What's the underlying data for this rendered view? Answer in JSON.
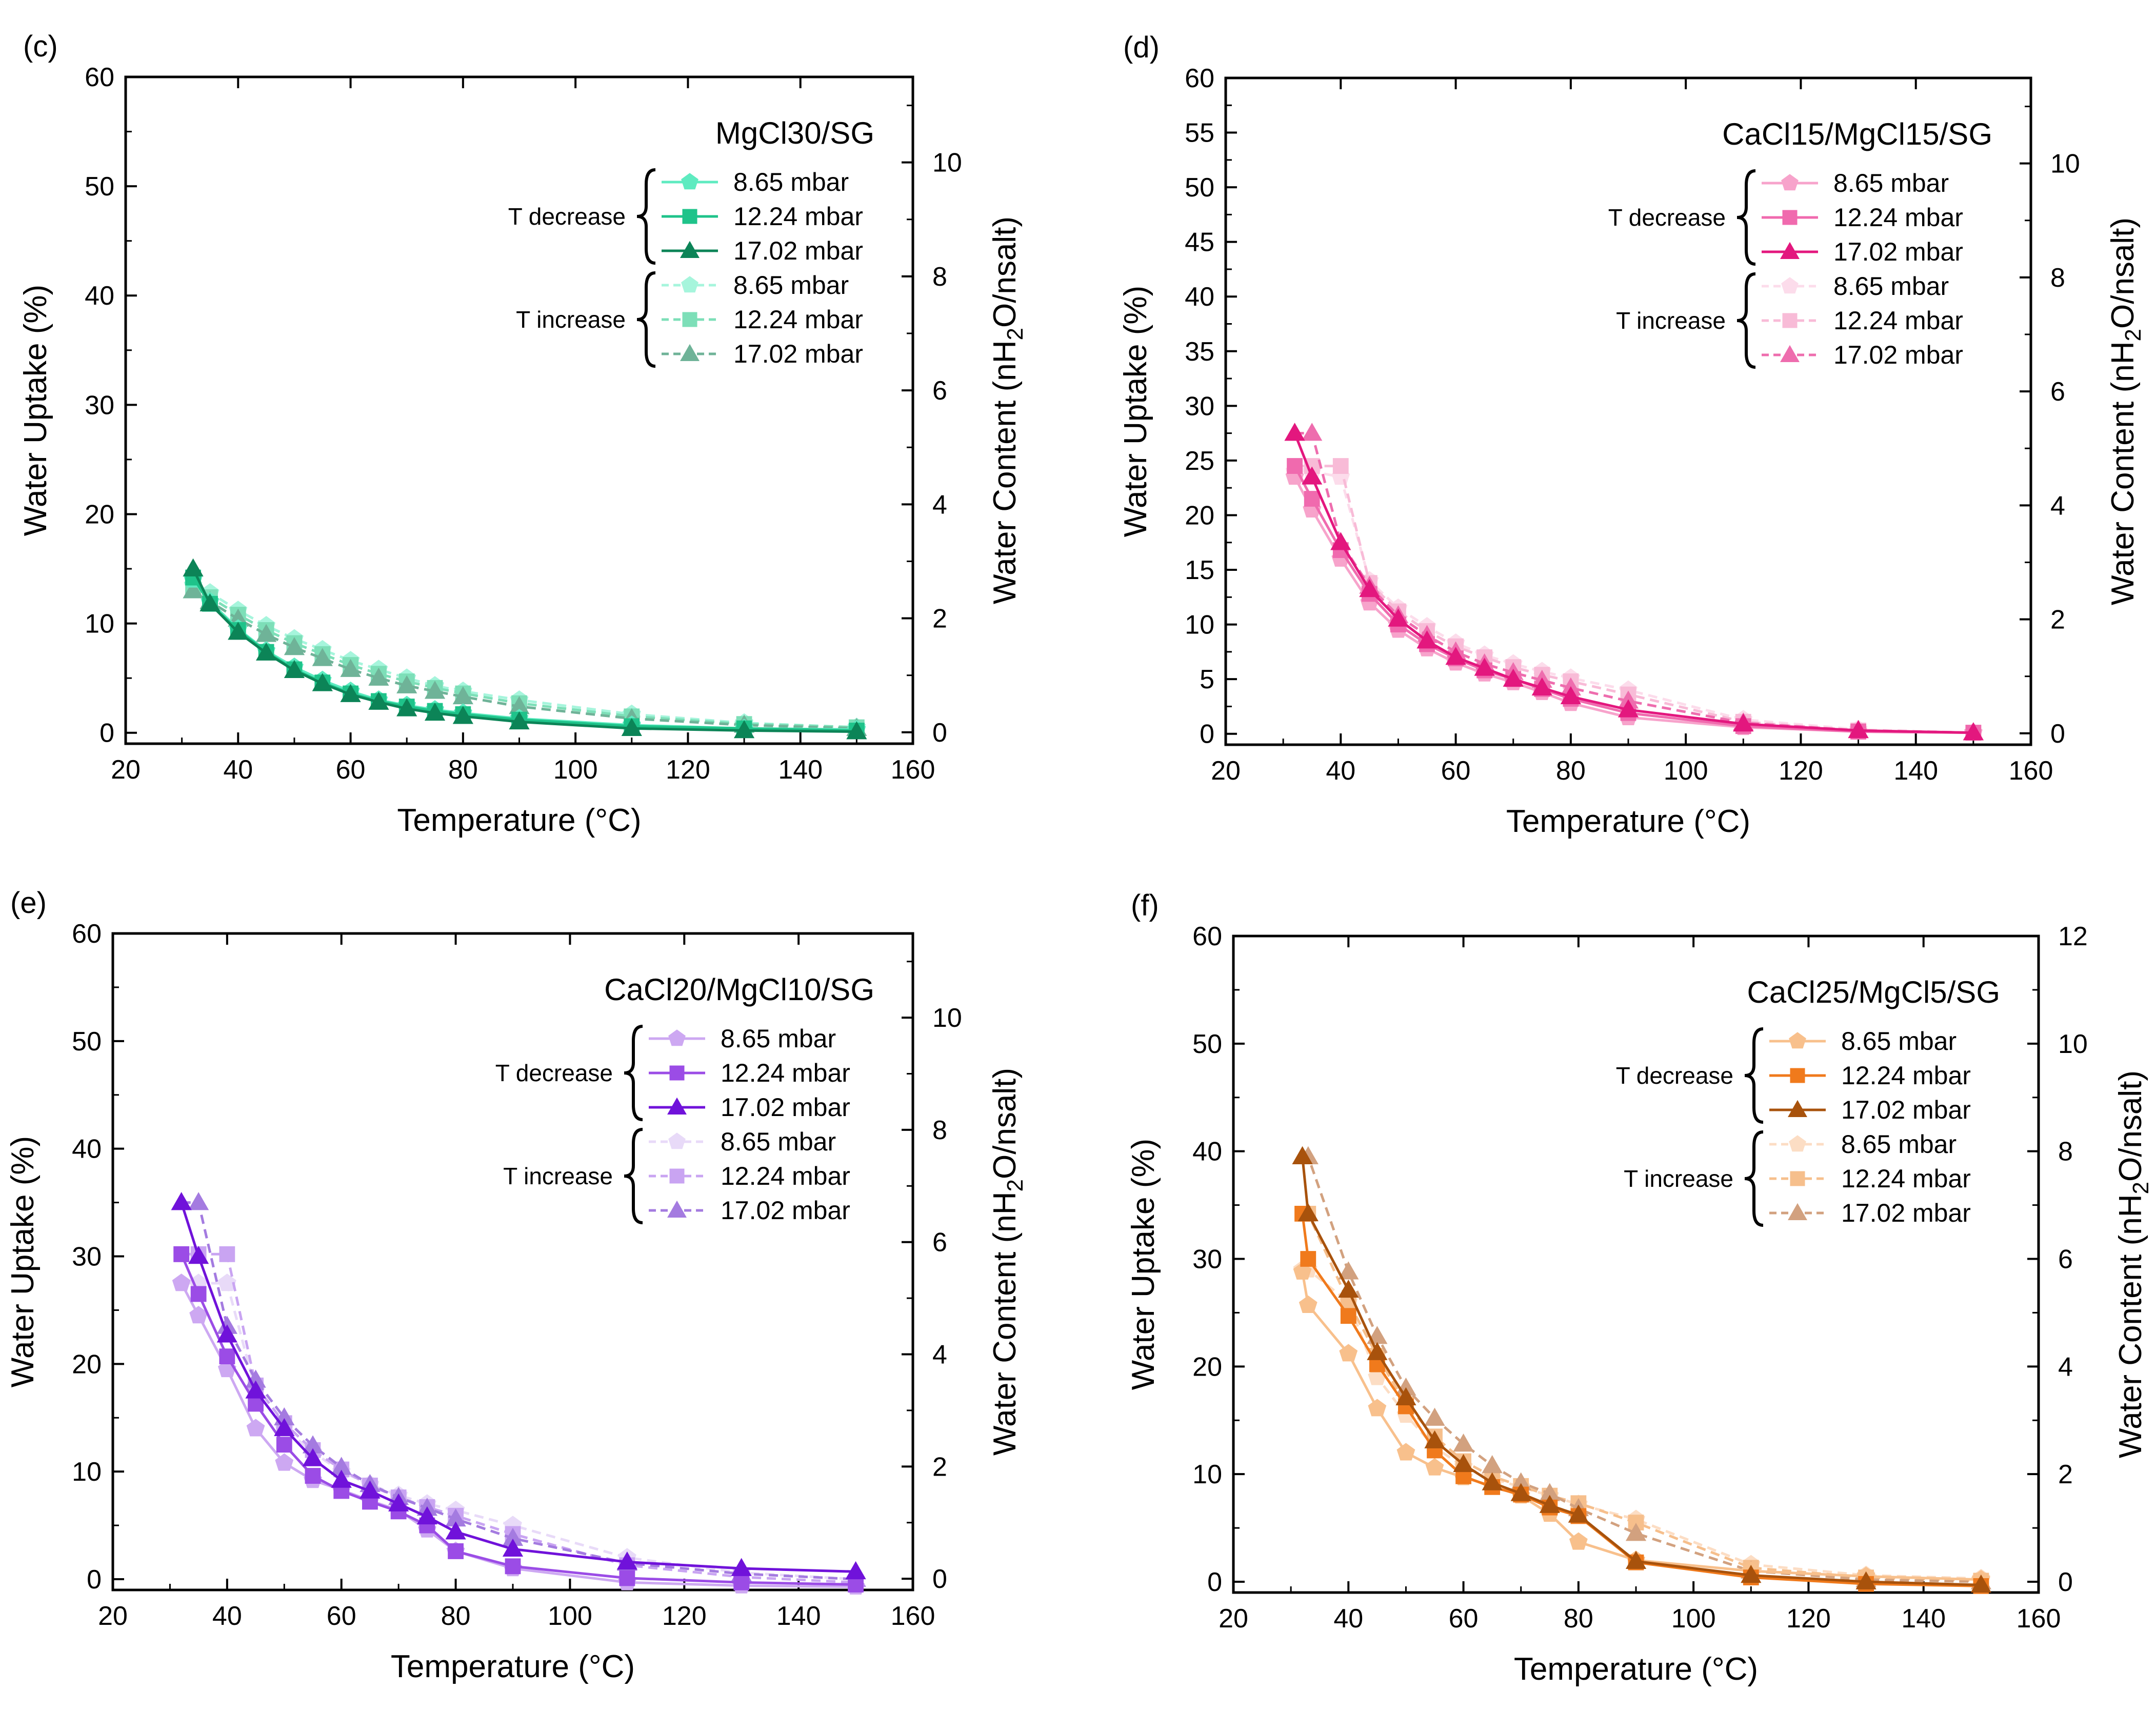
{
  "figure": {
    "legend_group_labels": [
      "T decrease",
      "T increase"
    ],
    "series_labels": [
      "8.65 mbar",
      "12.24 mbar",
      "17.02 mbar"
    ]
  },
  "chart_data": [
    {
      "type": "line",
      "panel_label": "(c)",
      "title": "MgCl30/SG",
      "xlabel": "Temperature (°C)",
      "ylabel": "Water Uptake (%)",
      "y2label": "Water Content (nH2O/nsalt)",
      "xlim": [
        20,
        160
      ],
      "xticks": [
        20,
        40,
        60,
        80,
        100,
        120,
        140,
        160
      ],
      "ylim": [
        -1,
        60
      ],
      "yticks": [
        0,
        10,
        20,
        30,
        40,
        50,
        60
      ],
      "y2lim": [
        -0.2,
        11.5
      ],
      "y2ticks": [
        0,
        2,
        4,
        6,
        8,
        10
      ],
      "colors": {
        "dec": [
          "#5EEBC0",
          "#1FC38A",
          "#0C8457"
        ],
        "inc": [
          "#A6F5DC",
          "#7DDFB8",
          "#6FB398"
        ]
      },
      "x": [
        32,
        35,
        40,
        45,
        50,
        55,
        60,
        65,
        70,
        75,
        80,
        90,
        110,
        130,
        150
      ],
      "series": [
        {
          "name": "8.65 mbar",
          "group": "T decrease",
          "values": [
            14.0,
            12.0,
            9.5,
            7.5,
            6.0,
            4.8,
            3.8,
            3.0,
            2.5,
            2.1,
            1.8,
            1.3,
            0.7,
            0.4,
            0.3
          ]
        },
        {
          "name": "12.24 mbar",
          "group": "T decrease",
          "values": [
            14.2,
            11.8,
            9.4,
            7.4,
            5.8,
            4.6,
            3.6,
            2.9,
            2.4,
            2.0,
            1.7,
            1.2,
            0.6,
            0.4,
            0.2
          ]
        },
        {
          "name": "17.02 mbar",
          "group": "T decrease",
          "values": [
            15.0,
            11.8,
            9.2,
            7.3,
            5.7,
            4.5,
            3.5,
            2.8,
            2.2,
            1.8,
            1.5,
            1.0,
            0.4,
            0.2,
            0.1
          ]
        },
        {
          "name": "8.65 mbar",
          "group": "T increase",
          "values": [
            13.5,
            12.8,
            11.2,
            9.8,
            8.6,
            7.6,
            6.6,
            5.8,
            5.0,
            4.3,
            3.8,
            3.0,
            1.7,
            0.9,
            0.5
          ]
        },
        {
          "name": "12.24 mbar",
          "group": "T increase",
          "values": [
            13.2,
            12.4,
            10.8,
            9.4,
            8.2,
            7.2,
            6.2,
            5.4,
            4.7,
            4.1,
            3.6,
            2.7,
            1.5,
            0.8,
            0.5
          ]
        },
        {
          "name": "17.02 mbar",
          "group": "T increase",
          "values": [
            13.0,
            12.0,
            10.4,
            9.0,
            7.8,
            6.8,
            5.8,
            5.0,
            4.3,
            3.8,
            3.3,
            2.4,
            1.3,
            0.7,
            0.4
          ]
        }
      ]
    },
    {
      "type": "line",
      "panel_label": "(d)",
      "title": "CaCl15/MgCl15/SG",
      "xlabel": "Temperature (°C)",
      "ylabel": "Water Uptake (%)",
      "y2label": "Water Content (nH2O/nsalt)",
      "xlim": [
        20,
        160
      ],
      "xticks": [
        20,
        40,
        60,
        80,
        100,
        120,
        140,
        160
      ],
      "ylim": [
        -1,
        60
      ],
      "yticks": [
        0,
        5,
        10,
        15,
        20,
        25,
        30,
        35,
        40,
        45,
        50,
        55,
        60
      ],
      "y2lim": [
        -0.2,
        11.5
      ],
      "y2ticks": [
        0,
        2,
        4,
        6,
        8,
        10
      ],
      "colors": {
        "dec": [
          "#F7A3CB",
          "#F06AAE",
          "#E3177E"
        ],
        "inc": [
          "#FCDCEB",
          "#F8BBD7",
          "#EE6DAE"
        ]
      },
      "x": [
        32,
        35,
        40,
        45,
        50,
        55,
        60,
        65,
        70,
        75,
        80,
        90,
        110,
        130,
        150
      ],
      "series": [
        {
          "name": "8.65 mbar",
          "group": "T decrease",
          "values": [
            23.5,
            20.5,
            16.0,
            12.0,
            9.5,
            7.8,
            6.5,
            5.5,
            4.7,
            3.8,
            2.8,
            1.5,
            0.6,
            0.2,
            0.1
          ]
        },
        {
          "name": "12.24 mbar",
          "group": "T decrease",
          "values": [
            24.5,
            21.5,
            16.8,
            12.8,
            10.0,
            8.2,
            6.9,
            5.8,
            5.0,
            4.1,
            3.2,
            1.9,
            0.7,
            0.2,
            0.1
          ]
        },
        {
          "name": "17.02 mbar",
          "group": "T decrease",
          "values": [
            27.5,
            23.5,
            17.5,
            13.2,
            10.5,
            8.5,
            7.0,
            6.0,
            5.0,
            4.2,
            3.4,
            2.2,
            0.9,
            0.3,
            0.1
          ]
        },
        {
          "name": "8.65 mbar",
          "group": "T increase",
          "values": [
            24.0,
            24.0,
            23.5,
            14.0,
            11.5,
            9.8,
            8.3,
            7.2,
            6.4,
            5.7,
            5.1,
            4.0,
            1.3,
            0.4,
            0.1
          ]
        },
        {
          "name": "12.24 mbar",
          "group": "T increase",
          "values": [
            24.5,
            24.5,
            24.5,
            13.8,
            11.2,
            9.4,
            8.0,
            7.0,
            6.1,
            5.4,
            4.8,
            3.6,
            1.1,
            0.3,
            0.1
          ]
        },
        {
          "name": "17.02 mbar",
          "group": "T increase",
          "values": [
            27.5,
            27.5,
            17.5,
            13.5,
            10.8,
            9.0,
            7.5,
            6.4,
            5.6,
            4.9,
            4.2,
            3.0,
            1.0,
            0.3,
            0.1
          ]
        }
      ]
    },
    {
      "type": "line",
      "panel_label": "(e)",
      "title": "CaCl20/MgCl10/SG",
      "xlabel": "Temperature (°C)",
      "ylabel": "Water Uptake (%)",
      "y2label": "Water Content (nH2O/nsalt)",
      "xlim": [
        20,
        160
      ],
      "xticks": [
        20,
        40,
        60,
        80,
        100,
        120,
        140,
        160
      ],
      "ylim": [
        -1,
        60
      ],
      "yticks": [
        0,
        10,
        20,
        30,
        40,
        50,
        60
      ],
      "y2lim": [
        -0.2,
        11.5
      ],
      "y2ticks": [
        0,
        2,
        4,
        6,
        8,
        10
      ],
      "colors": {
        "dec": [
          "#CDA8F2",
          "#9B4CE6",
          "#7012DA"
        ],
        "inc": [
          "#E8DAF8",
          "#C9A4F2",
          "#A47BE0"
        ]
      },
      "x": [
        32,
        35,
        40,
        45,
        50,
        55,
        60,
        65,
        70,
        75,
        80,
        90,
        110,
        130,
        150
      ],
      "series": [
        {
          "name": "8.65 mbar",
          "group": "T decrease",
          "values": [
            27.5,
            24.5,
            19.5,
            14.0,
            10.8,
            9.2,
            8.3,
            7.3,
            6.4,
            4.6,
            2.6,
            1.0,
            -0.3,
            -0.6,
            -0.7
          ]
        },
        {
          "name": "12.24 mbar",
          "group": "T decrease",
          "values": [
            30.2,
            26.5,
            20.7,
            16.3,
            12.5,
            9.6,
            8.2,
            7.2,
            6.3,
            5.0,
            2.6,
            1.2,
            0.1,
            -0.3,
            -0.5
          ]
        },
        {
          "name": "17.02 mbar",
          "group": "T decrease",
          "values": [
            35.0,
            30.0,
            22.7,
            17.5,
            14.0,
            11.2,
            9.2,
            8.2,
            7.0,
            5.8,
            4.4,
            2.8,
            1.6,
            1.0,
            0.7
          ]
        },
        {
          "name": "8.65 mbar",
          "group": "T increase",
          "values": [
            27.5,
            27.5,
            27.5,
            17.5,
            14.0,
            11.8,
            10.0,
            8.8,
            7.8,
            7.0,
            6.4,
            5.0,
            2.0,
            0.6,
            0.0
          ]
        },
        {
          "name": "12.24 mbar",
          "group": "T increase",
          "values": [
            30.2,
            30.2,
            30.2,
            18.0,
            14.5,
            12.0,
            10.2,
            8.7,
            7.6,
            6.7,
            5.9,
            4.2,
            1.3,
            0.2,
            -0.3
          ]
        },
        {
          "name": "17.02 mbar",
          "group": "T increase",
          "values": [
            35.0,
            35.0,
            23.5,
            18.5,
            15.0,
            12.4,
            10.4,
            8.8,
            7.6,
            6.6,
            5.6,
            3.8,
            1.5,
            0.5,
            0.0
          ]
        }
      ]
    },
    {
      "type": "line",
      "panel_label": "(f)",
      "title": "CaCl25/MgCl5/SG",
      "xlabel": "Temperature (°C)",
      "ylabel": "Water Uptake (%)",
      "y2label": "Water Content (nH2O/nsalt)",
      "xlim": [
        20,
        160
      ],
      "xticks": [
        20,
        40,
        60,
        80,
        100,
        120,
        140,
        160
      ],
      "ylim": [
        -1,
        60
      ],
      "yticks": [
        0,
        10,
        20,
        30,
        40,
        50,
        60
      ],
      "y2lim": [
        -0.2,
        12
      ],
      "y2ticks": [
        0,
        2,
        4,
        6,
        8,
        10,
        12
      ],
      "colors": {
        "dec": [
          "#F8C08C",
          "#F07A1C",
          "#A8520C"
        ],
        "inc": [
          "#FCDDC4",
          "#F6BF8C",
          "#D2A17F"
        ]
      },
      "x": [
        32,
        33,
        40,
        45,
        50,
        55,
        60,
        65,
        70,
        75,
        80,
        90,
        110,
        130,
        150
      ],
      "series": [
        {
          "name": "8.65 mbar",
          "group": "T decrease",
          "values": [
            28.8,
            25.7,
            21.2,
            16.1,
            12.0,
            10.6,
            9.7,
            8.9,
            8.0,
            6.3,
            3.7,
            2.0,
            1.0,
            0.5,
            0.2
          ]
        },
        {
          "name": "12.24 mbar",
          "group": "T decrease",
          "values": [
            34.2,
            30.0,
            24.7,
            20.2,
            16.3,
            12.2,
            9.8,
            8.8,
            8.1,
            6.9,
            6.1,
            1.8,
            0.4,
            -0.2,
            -0.4
          ]
        },
        {
          "name": "17.02 mbar",
          "group": "T decrease",
          "values": [
            39.5,
            34.2,
            27.1,
            21.3,
            17.1,
            13.1,
            10.9,
            9.2,
            8.2,
            7.1,
            6.2,
            1.9,
            0.6,
            0.0,
            -0.3
          ]
        },
        {
          "name": "8.65 mbar",
          "group": "T increase",
          "values": [
            29.0,
            29.0,
            26.0,
            19.0,
            15.5,
            12.5,
            10.7,
            9.6,
            8.8,
            8.0,
            7.2,
            5.8,
            1.6,
            0.6,
            0.3
          ]
        },
        {
          "name": "12.24 mbar",
          "group": "T increase",
          "values": [
            34.2,
            34.2,
            26.0,
            21.0,
            16.5,
            13.5,
            11.2,
            9.8,
            8.9,
            8.0,
            7.3,
            5.5,
            1.3,
            0.4,
            0.1
          ]
        },
        {
          "name": "17.02 mbar",
          "group": "T increase",
          "values": [
            39.5,
            39.5,
            28.8,
            22.8,
            18.0,
            15.2,
            12.8,
            10.8,
            9.2,
            8.2,
            6.8,
            4.5,
            1.0,
            0.2,
            0.0
          ]
        }
      ]
    }
  ]
}
